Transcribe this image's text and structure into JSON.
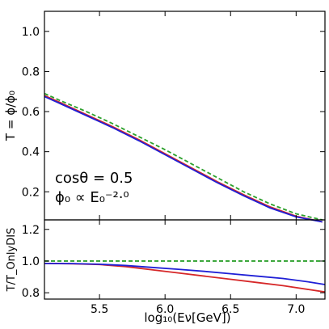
{
  "chart_data": [
    {
      "type": "line",
      "panel": "main",
      "ylabel": "T = ϕ/ϕ₀",
      "xlim": [
        5.08,
        7.22
      ],
      "ylim": [
        0.06,
        1.1
      ],
      "ytick_values": [
        0.2,
        0.4,
        0.6,
        0.8,
        1.0
      ],
      "ytick_labels": [
        "0.2",
        "0.4",
        "0.6",
        "0.8",
        "1.0"
      ],
      "annotation": [
        "cosθ = 0.5",
        "ϕ₀ ∝ E₀⁻²·⁰"
      ],
      "grid": false,
      "series": [
        {
          "color": "#2ca02c",
          "style": "dashed",
          "x": [
            5.08,
            5.2,
            5.4,
            5.6,
            5.8,
            6.0,
            6.2,
            6.4,
            6.6,
            6.8,
            7.0,
            7.2
          ],
          "y": [
            0.69,
            0.655,
            0.6,
            0.54,
            0.475,
            0.41,
            0.34,
            0.27,
            0.2,
            0.14,
            0.09,
            0.06
          ]
        },
        {
          "color": "#d62728",
          "style": "solid",
          "x": [
            5.08,
            5.2,
            5.4,
            5.6,
            5.8,
            6.0,
            6.2,
            6.4,
            6.6,
            6.8,
            7.0,
            7.2
          ],
          "y": [
            0.68,
            0.645,
            0.585,
            0.525,
            0.46,
            0.39,
            0.32,
            0.25,
            0.185,
            0.125,
            0.078,
            0.05
          ]
        },
        {
          "color": "#1f1fd6",
          "style": "solid",
          "x": [
            5.08,
            5.2,
            5.4,
            5.6,
            5.8,
            6.0,
            6.2,
            6.4,
            6.6,
            6.8,
            7.0,
            7.2
          ],
          "y": [
            0.675,
            0.64,
            0.58,
            0.52,
            0.455,
            0.385,
            0.315,
            0.245,
            0.18,
            0.12,
            0.075,
            0.05
          ]
        }
      ]
    },
    {
      "type": "line",
      "panel": "ratio",
      "xlabel": "log₁₀(Eν[GeV])",
      "ylabel": "T/T_OnlyDIS",
      "xlim": [
        5.08,
        7.22
      ],
      "ylim": [
        0.76,
        1.26
      ],
      "ytick_values": [
        0.8,
        1.0,
        1.2
      ],
      "ytick_labels": [
        "0.8",
        "1.0",
        "1.2"
      ],
      "xtick_values": [
        5.5,
        6.0,
        6.5,
        7.0
      ],
      "xtick_labels": [
        "5.5",
        "6.0",
        "6.5",
        "7.0"
      ],
      "grid": false,
      "series": [
        {
          "color": "#2ca02c",
          "style": "dashed",
          "x": [
            5.08,
            7.22
          ],
          "y": [
            1.0,
            1.0
          ]
        },
        {
          "color": "#d62728",
          "style": "solid",
          "x": [
            5.08,
            5.3,
            5.5,
            5.7,
            5.9,
            6.1,
            6.3,
            6.5,
            6.7,
            6.9,
            7.1,
            7.22
          ],
          "y": [
            0.985,
            0.983,
            0.978,
            0.965,
            0.945,
            0.925,
            0.905,
            0.885,
            0.865,
            0.845,
            0.82,
            0.805
          ]
        },
        {
          "color": "#1f1fd6",
          "style": "solid",
          "x": [
            5.08,
            5.3,
            5.5,
            5.7,
            5.9,
            6.1,
            6.3,
            6.5,
            6.7,
            6.9,
            7.1,
            7.22
          ],
          "y": [
            0.985,
            0.984,
            0.98,
            0.972,
            0.96,
            0.948,
            0.935,
            0.92,
            0.905,
            0.89,
            0.868,
            0.852
          ]
        }
      ]
    }
  ]
}
